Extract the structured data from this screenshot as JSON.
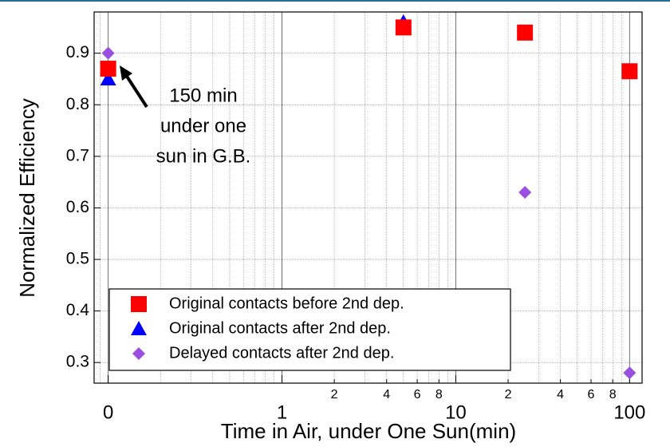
{
  "chart_data": {
    "type": "scatter",
    "xlabel": "Time in Air, under One Sun(min)",
    "ylabel": "Normalized Efficiency",
    "xscale": "log",
    "xlim": [
      0.083,
      118
    ],
    "ylim": [
      0.26,
      0.98
    ],
    "xticks": [
      {
        "value": 0.1,
        "label": "0"
      },
      1,
      10,
      100
    ],
    "xminor_ticks": [
      2,
      4,
      6,
      8,
      {
        "value": 20,
        "label": "2"
      },
      {
        "value": 40,
        "label": "4"
      },
      {
        "value": 60,
        "label": "6"
      },
      {
        "value": 80,
        "label": "8"
      }
    ],
    "yticks": [
      0.3,
      0.4,
      0.5,
      0.6,
      0.7,
      0.8,
      0.9
    ],
    "grid": true,
    "legend": "lower left",
    "series": [
      {
        "name": "Original contacts before 2nd dep.",
        "color": "#ff0000",
        "marker": "square",
        "x": [
          0.1,
          5,
          25,
          100
        ],
        "values": [
          0.87,
          0.95,
          0.94,
          0.865
        ]
      },
      {
        "name": "Original contacts after 2nd dep.",
        "color": "#0000ff",
        "marker": "triangle",
        "x": [
          0.1,
          5,
          25,
          100
        ],
        "values": [
          0.85,
          0.96,
          0.94,
          0.865
        ]
      },
      {
        "name": "Delayed contacts after 2nd dep.",
        "color": "#9b4fe0",
        "marker": "diamond",
        "x": [
          0.1,
          25,
          100
        ],
        "values": [
          0.9,
          0.63,
          0.28
        ]
      }
    ],
    "annotation": {
      "lines": [
        "150 min",
        "under one",
        "sun in G.B."
      ]
    }
  }
}
